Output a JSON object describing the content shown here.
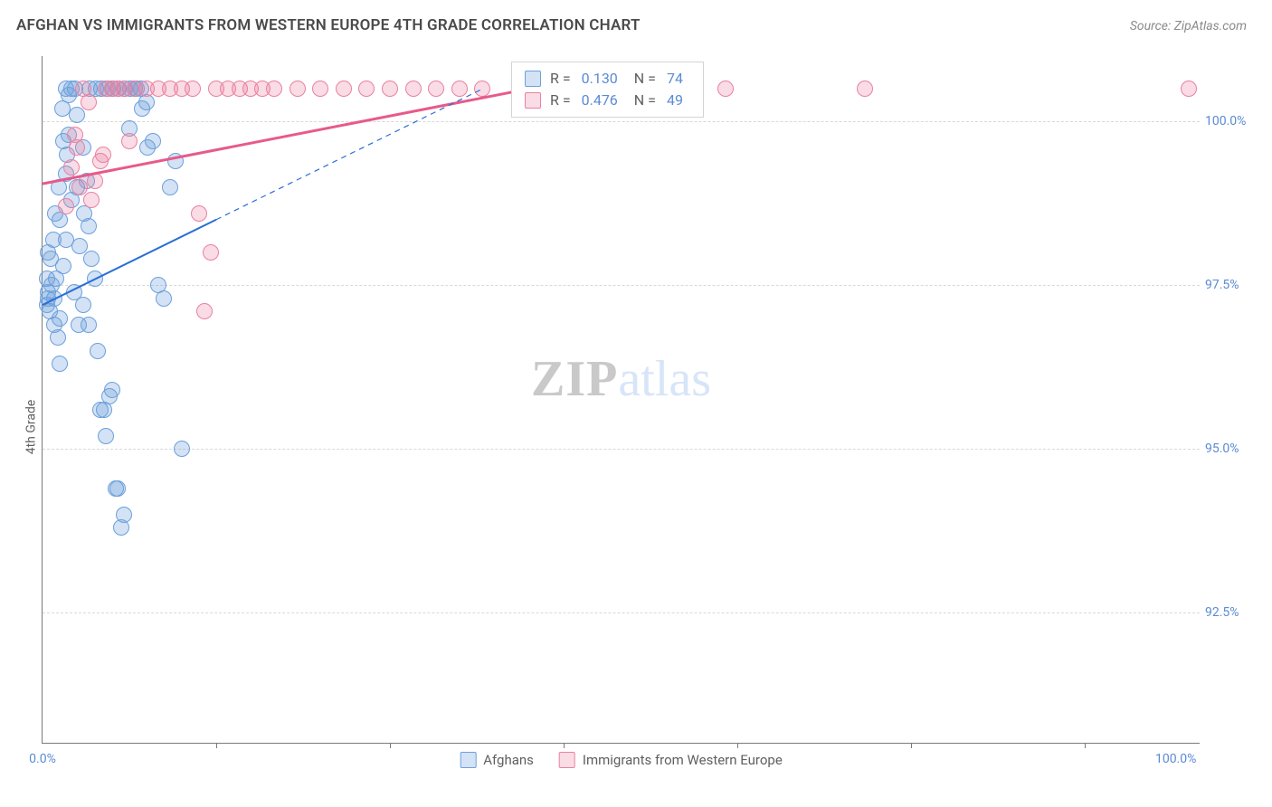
{
  "title": "AFGHAN VS IMMIGRANTS FROM WESTERN EUROPE 4TH GRADE CORRELATION CHART",
  "source": "Source: ZipAtlas.com",
  "y_axis_label": "4th Grade",
  "chart": {
    "type": "scatter",
    "x_domain": [
      0,
      100
    ],
    "y_domain": [
      90.5,
      101.0
    ],
    "background_color": "#ffffff",
    "grid_color": "#d9d9d9",
    "axis_color": "#7a7a7a",
    "tick_label_color": "#5b8bd4",
    "tick_fontsize": 14,
    "y_ticks": [
      92.5,
      95.0,
      97.5,
      100.0
    ],
    "y_tick_labels": [
      "92.5%",
      "95.0%",
      "97.5%",
      "100.0%"
    ],
    "x_ticks_major": [
      0,
      100
    ],
    "x_tick_labels": [
      "0.0%",
      "100.0%"
    ],
    "x_ticks_minor": [
      15,
      30,
      45,
      60,
      75,
      90
    ],
    "point_radius": 9,
    "series": {
      "afghans": {
        "label": "Afghans",
        "fill": "rgba(108,160,220,0.30)",
        "stroke": "#6ca0dc",
        "trend_color": "#2a6ed6",
        "trend_width": 2,
        "dash_after_x": 15,
        "R": "0.130",
        "N": "74",
        "trend": {
          "x1": 0,
          "y1": 97.2,
          "x2": 38,
          "y2": 100.5
        },
        "points": [
          [
            0.5,
            97.4
          ],
          [
            0.5,
            97.3
          ],
          [
            0.6,
            97.1
          ],
          [
            0.8,
            97.5
          ],
          [
            1.0,
            97.3
          ],
          [
            1.2,
            97.6
          ],
          [
            1.0,
            96.9
          ],
          [
            1.3,
            96.7
          ],
          [
            1.5,
            96.3
          ],
          [
            1.5,
            97.0
          ],
          [
            1.8,
            97.8
          ],
          [
            2.0,
            98.2
          ],
          [
            2.0,
            99.2
          ],
          [
            2.1,
            99.5
          ],
          [
            2.3,
            100.4
          ],
          [
            2.5,
            100.5
          ],
          [
            2.8,
            100.5
          ],
          [
            3.0,
            99.0
          ],
          [
            3.2,
            98.1
          ],
          [
            3.5,
            99.6
          ],
          [
            3.8,
            99.1
          ],
          [
            4.0,
            98.4
          ],
          [
            4.2,
            97.9
          ],
          [
            4.5,
            97.6
          ],
          [
            4.8,
            96.5
          ],
          [
            5.0,
            95.6
          ],
          [
            5.3,
            95.6
          ],
          [
            5.5,
            95.2
          ],
          [
            5.8,
            95.8
          ],
          [
            6.0,
            95.9
          ],
          [
            6.3,
            94.4
          ],
          [
            6.5,
            94.4
          ],
          [
            6.8,
            93.8
          ],
          [
            7.0,
            94.0
          ],
          [
            7.5,
            99.9
          ],
          [
            8.0,
            100.5
          ],
          [
            8.5,
            100.5
          ],
          [
            9.0,
            100.3
          ],
          [
            9.5,
            99.7
          ],
          [
            10.0,
            97.5
          ],
          [
            10.5,
            97.3
          ],
          [
            11.0,
            99.0
          ],
          [
            11.5,
            99.4
          ],
          [
            12.0,
            95.0
          ],
          [
            1.5,
            98.5
          ],
          [
            2.5,
            98.8
          ],
          [
            3.0,
            100.1
          ],
          [
            3.5,
            97.2
          ],
          [
            4.0,
            96.9
          ],
          [
            1.8,
            99.7
          ],
          [
            2.3,
            99.8
          ],
          [
            0.7,
            97.9
          ],
          [
            0.9,
            98.2
          ],
          [
            1.1,
            98.6
          ],
          [
            1.4,
            99.0
          ],
          [
            1.7,
            100.2
          ],
          [
            2.0,
            100.5
          ],
          [
            0.4,
            97.2
          ],
          [
            0.4,
            97.6
          ],
          [
            0.5,
            98.0
          ],
          [
            2.7,
            97.4
          ],
          [
            3.1,
            96.9
          ],
          [
            3.6,
            98.6
          ],
          [
            4.1,
            100.5
          ],
          [
            4.6,
            100.5
          ],
          [
            5.1,
            100.5
          ],
          [
            5.6,
            100.5
          ],
          [
            6.1,
            100.5
          ],
          [
            6.6,
            100.5
          ],
          [
            7.1,
            100.5
          ],
          [
            7.6,
            100.5
          ],
          [
            8.1,
            100.5
          ],
          [
            8.6,
            100.2
          ],
          [
            9.1,
            99.6
          ]
        ]
      },
      "western_europe": {
        "label": "Immigrants from Western Europe",
        "fill": "rgba(235,128,160,0.28)",
        "stroke": "#eb80a0",
        "trend_color": "#e75a8a",
        "trend_width": 3,
        "R": "0.476",
        "N": "49",
        "trend": {
          "x1": 0,
          "y1": 99.05,
          "x2": 42,
          "y2": 100.5
        },
        "points": [
          [
            2.0,
            98.7
          ],
          [
            2.5,
            99.3
          ],
          [
            3.0,
            99.6
          ],
          [
            3.5,
            100.5
          ],
          [
            4.0,
            100.3
          ],
          [
            4.5,
            99.1
          ],
          [
            5.0,
            99.4
          ],
          [
            5.5,
            100.5
          ],
          [
            6.0,
            100.5
          ],
          [
            6.5,
            100.5
          ],
          [
            7.0,
            100.5
          ],
          [
            7.5,
            99.7
          ],
          [
            8.0,
            100.5
          ],
          [
            9.0,
            100.5
          ],
          [
            10.0,
            100.5
          ],
          [
            11.0,
            100.5
          ],
          [
            12.0,
            100.5
          ],
          [
            13.0,
            100.5
          ],
          [
            13.5,
            98.6
          ],
          [
            14.0,
            97.1
          ],
          [
            14.5,
            98.0
          ],
          [
            15.0,
            100.5
          ],
          [
            16.0,
            100.5
          ],
          [
            17.0,
            100.5
          ],
          [
            18.0,
            100.5
          ],
          [
            19.0,
            100.5
          ],
          [
            20.0,
            100.5
          ],
          [
            22.0,
            100.5
          ],
          [
            24.0,
            100.5
          ],
          [
            26.0,
            100.5
          ],
          [
            28.0,
            100.5
          ],
          [
            30.0,
            100.5
          ],
          [
            32.0,
            100.5
          ],
          [
            34.0,
            100.5
          ],
          [
            36.0,
            100.5
          ],
          [
            38.0,
            100.5
          ],
          [
            42.0,
            100.5
          ],
          [
            44.0,
            100.5
          ],
          [
            46.0,
            100.3
          ],
          [
            50.0,
            100.5
          ],
          [
            52.0,
            100.5
          ],
          [
            54.0,
            100.5
          ],
          [
            59.0,
            100.5
          ],
          [
            71.0,
            100.5
          ],
          [
            99.0,
            100.5
          ],
          [
            3.2,
            99.0
          ],
          [
            4.2,
            98.8
          ],
          [
            5.2,
            99.5
          ],
          [
            2.8,
            99.8
          ]
        ]
      }
    }
  },
  "stats_box": {
    "rows": [
      {
        "swatch_fill": "rgba(108,160,220,0.30)",
        "swatch_stroke": "#6ca0dc",
        "r_label": "R =",
        "r_val": "0.130",
        "n_label": "N =",
        "n_val": "74"
      },
      {
        "swatch_fill": "rgba(235,128,160,0.28)",
        "swatch_stroke": "#eb80a0",
        "r_label": "R =",
        "r_val": "0.476",
        "n_label": "N =",
        "n_val": "49"
      }
    ]
  },
  "watermark": {
    "zip": "ZIP",
    "atlas": "atlas",
    "fontsize": 56
  },
  "legend": [
    {
      "fill": "rgba(108,160,220,0.30)",
      "stroke": "#6ca0dc",
      "label": "Afghans"
    },
    {
      "fill": "rgba(235,128,160,0.28)",
      "stroke": "#eb80a0",
      "label": "Immigrants from Western Europe"
    }
  ]
}
